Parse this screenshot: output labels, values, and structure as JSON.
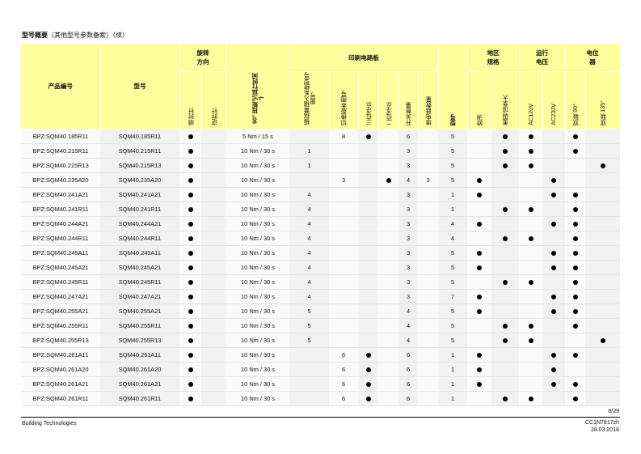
{
  "title": {
    "main": "型号概要",
    "sub": "（其他型号参数备索）（续）"
  },
  "headers": {
    "product_number": "产品编号",
    "type": "型号",
    "rotation_group": "旋转\n方向",
    "rotation_cw": "顺时针",
    "rotation_ccw": "逆时针",
    "torque_time": "90° 扭矩²)/运行时间³)",
    "pcb_group": "印刷电路板",
    "pcb": [
      "模拟量输入系统型号图号",
      "切换版本图号",
      "三位浮点",
      "二位浮点",
      "开关数量",
      "继电器数量"
    ],
    "model_no": "型号",
    "region_group": "地区\n规格",
    "region": [
      "欧洲",
      "美国/加拿大"
    ],
    "voltage_group": "运行\n电压",
    "voltage": [
      "AC120V",
      "AC230V"
    ],
    "pot_group": "电位\n器",
    "pot": [
      "双联 90°",
      "双联 135°"
    ]
  },
  "rows": [
    {
      "product": "BPZ:SQM40.185R11",
      "type": "SQM40.185R11",
      "cw": true,
      "torque": "5 Nm / 15 s",
      "pcb_a": "",
      "pcb_b": "8",
      "pcb_c": true,
      "pcb_d": false,
      "pcb_e": "6",
      "pcb_f": "",
      "model": "5",
      "eu": false,
      "us": true,
      "v120": true,
      "v230": false,
      "p90": true,
      "p135": false
    },
    {
      "product": "BPZ:SQM40.215R11",
      "type": "SQM40.215R11",
      "cw": true,
      "torque": "10 Nm / 30 s",
      "pcb_a": "1",
      "pcb_b": "",
      "pcb_c": false,
      "pcb_d": false,
      "pcb_e": "3",
      "pcb_f": "",
      "model": "5",
      "eu": false,
      "us": true,
      "v120": true,
      "v230": false,
      "p90": true,
      "p135": false
    },
    {
      "product": "BPZ:SQM40.215R13",
      "type": "SQM40.215R13",
      "cw": true,
      "torque": "10 Nm / 30 s",
      "pcb_a": "1",
      "pcb_b": "",
      "pcb_c": false,
      "pcb_d": false,
      "pcb_e": "3",
      "pcb_f": "",
      "model": "5",
      "eu": false,
      "us": true,
      "v120": true,
      "v230": false,
      "p90": false,
      "p135": true
    },
    {
      "product": "BPZ:SQM40.235A20",
      "type": "SQM40.235A20",
      "cw": true,
      "torque": "10 Nm / 30 s",
      "pcb_a": "",
      "pcb_b": "3",
      "pcb_c": false,
      "pcb_d": true,
      "pcb_e": "4",
      "pcb_f": "3",
      "model": "5",
      "eu": true,
      "us": false,
      "v120": false,
      "v230": true,
      "p90": false,
      "p135": false
    },
    {
      "product": "BPZ:SQM40.241A21",
      "type": "SQM40.241A21",
      "cw": true,
      "torque": "10 Nm / 30 s",
      "pcb_a": "4",
      "pcb_b": "",
      "pcb_c": false,
      "pcb_d": false,
      "pcb_e": "3",
      "pcb_f": "",
      "model": "1",
      "eu": true,
      "us": false,
      "v120": false,
      "v230": true,
      "p90": true,
      "p135": false
    },
    {
      "product": "BPZ:SQM40.241R11",
      "type": "SQM40.241R11",
      "cw": true,
      "torque": "10 Nm / 30 s",
      "pcb_a": "4",
      "pcb_b": "",
      "pcb_c": false,
      "pcb_d": false,
      "pcb_e": "3",
      "pcb_f": "",
      "model": "1",
      "eu": false,
      "us": true,
      "v120": true,
      "v230": false,
      "p90": true,
      "p135": false
    },
    {
      "product": "BPZ:SQM40.244A21",
      "type": "SQM40.244A21",
      "cw": true,
      "torque": "10 Nm / 30 s",
      "pcb_a": "4",
      "pcb_b": "",
      "pcb_c": false,
      "pcb_d": false,
      "pcb_e": "3",
      "pcb_f": "",
      "model": "4",
      "eu": true,
      "us": false,
      "v120": false,
      "v230": true,
      "p90": true,
      "p135": false
    },
    {
      "product": "BPZ:SQM40.244R11",
      "type": "SQM40.244R11",
      "cw": true,
      "torque": "10 Nm / 30 s",
      "pcb_a": "4",
      "pcb_b": "",
      "pcb_c": false,
      "pcb_d": false,
      "pcb_e": "3",
      "pcb_f": "",
      "model": "4",
      "eu": false,
      "us": true,
      "v120": true,
      "v230": false,
      "p90": true,
      "p135": false
    },
    {
      "product": "BPZ:SQM40.245A11",
      "type": "SQM40.245A11",
      "cw": true,
      "torque": "10 Nm / 30 s",
      "pcb_a": "4",
      "pcb_b": "",
      "pcb_c": false,
      "pcb_d": false,
      "pcb_e": "3",
      "pcb_f": "",
      "model": "5",
      "eu": true,
      "us": false,
      "v120": false,
      "v230": true,
      "p90": true,
      "p135": false
    },
    {
      "product": "BPZ:SQM40.245A21",
      "type": "SQM40.245A21",
      "cw": true,
      "torque": "10 Nm / 30 s",
      "pcb_a": "4",
      "pcb_b": "",
      "pcb_c": false,
      "pcb_d": false,
      "pcb_e": "3",
      "pcb_f": "",
      "model": "5",
      "eu": true,
      "us": false,
      "v120": false,
      "v230": true,
      "p90": true,
      "p135": false
    },
    {
      "product": "BPZ:SQM40.245R11",
      "type": "SQM40.245R11",
      "cw": true,
      "torque": "10 Nm / 30 s",
      "pcb_a": "4",
      "pcb_b": "",
      "pcb_c": false,
      "pcb_d": false,
      "pcb_e": "3",
      "pcb_f": "",
      "model": "5",
      "eu": false,
      "us": true,
      "v120": true,
      "v230": false,
      "p90": true,
      "p135": false
    },
    {
      "product": "BPZ:SQM40.247A21",
      "type": "SQM40.247A21",
      "cw": true,
      "torque": "10 Nm / 30 s",
      "pcb_a": "4",
      "pcb_b": "",
      "pcb_c": false,
      "pcb_d": false,
      "pcb_e": "3",
      "pcb_f": "",
      "model": "7",
      "eu": true,
      "us": false,
      "v120": false,
      "v230": true,
      "p90": true,
      "p135": false
    },
    {
      "product": "BPZ:SQM40.255A21",
      "type": "SQM40.255A21",
      "cw": true,
      "torque": "10 Nm / 30 s",
      "pcb_a": "5",
      "pcb_b": "",
      "pcb_c": false,
      "pcb_d": false,
      "pcb_e": "4",
      "pcb_f": "",
      "model": "5",
      "eu": true,
      "us": false,
      "v120": false,
      "v230": true,
      "p90": true,
      "p135": false
    },
    {
      "product": "BPZ:SQM40.255R11",
      "type": "SQM40.255R11",
      "cw": true,
      "torque": "10 Nm / 30 s",
      "pcb_a": "5",
      "pcb_b": "",
      "pcb_c": false,
      "pcb_d": false,
      "pcb_e": "4",
      "pcb_f": "",
      "model": "5",
      "eu": false,
      "us": true,
      "v120": true,
      "v230": false,
      "p90": true,
      "p135": false
    },
    {
      "product": "BPZ:SQM40.255R13",
      "type": "SQM40.255R13",
      "cw": true,
      "torque": "10 Nm / 30 s",
      "pcb_a": "5",
      "pcb_b": "",
      "pcb_c": false,
      "pcb_d": false,
      "pcb_e": "4",
      "pcb_f": "",
      "model": "5",
      "eu": false,
      "us": true,
      "v120": true,
      "v230": false,
      "p90": false,
      "p135": true
    },
    {
      "product": "BPZ:SQM40.261A11",
      "type": "SQM40.261A11",
      "cw": true,
      "torque": "10 Nm / 30 s",
      "pcb_a": "",
      "pcb_b": "6",
      "pcb_c": true,
      "pcb_d": false,
      "pcb_e": "6",
      "pcb_f": "",
      "model": "1",
      "eu": true,
      "us": false,
      "v120": false,
      "v230": true,
      "p90": true,
      "p135": false
    },
    {
      "product": "BPZ:SQM40.261A20",
      "type": "SQM40.261A20",
      "cw": true,
      "torque": "10 Nm / 30 s",
      "pcb_a": "",
      "pcb_b": "6",
      "pcb_c": true,
      "pcb_d": false,
      "pcb_e": "6",
      "pcb_f": "",
      "model": "1",
      "eu": true,
      "us": false,
      "v120": false,
      "v230": true,
      "p90": false,
      "p135": false
    },
    {
      "product": "BPZ:SQM40.261A21",
      "type": "SQM40.261A21",
      "cw": true,
      "torque": "10 Nm / 30 s",
      "pcb_a": "",
      "pcb_b": "6",
      "pcb_c": true,
      "pcb_d": false,
      "pcb_e": "6",
      "pcb_f": "",
      "model": "1",
      "eu": true,
      "us": false,
      "v120": false,
      "v230": true,
      "p90": true,
      "p135": false
    },
    {
      "product": "BPZ:SQM40.261R11",
      "type": "SQM40.261R11",
      "cw": true,
      "torque": "10 Nm / 30 s",
      "pcb_a": "",
      "pcb_b": "6",
      "pcb_c": true,
      "pcb_d": false,
      "pcb_e": "6",
      "pcb_f": "",
      "model": "1",
      "eu": false,
      "us": true,
      "v120": true,
      "v230": false,
      "p90": true,
      "p135": false
    }
  ],
  "footer": {
    "page": "8/29",
    "company": "Building Technologies",
    "doc_id": "CC1N7817zh",
    "date": "28.03.2018"
  }
}
